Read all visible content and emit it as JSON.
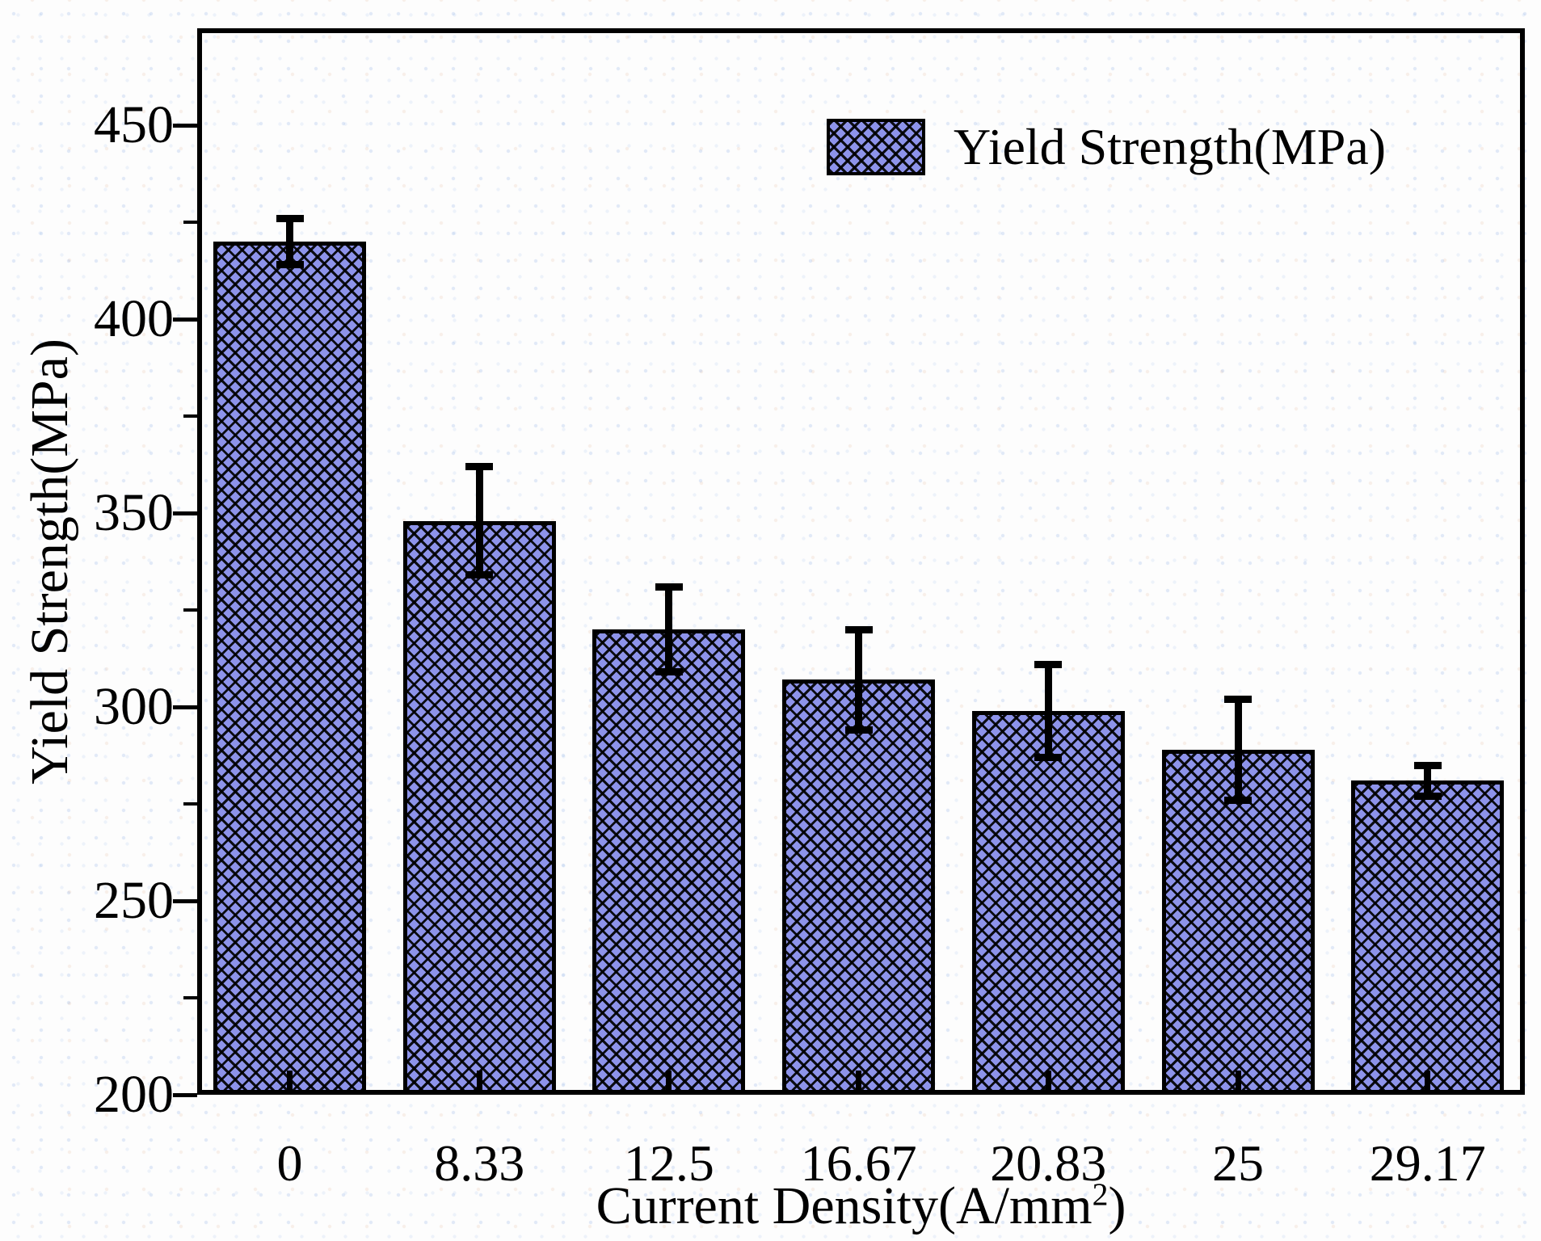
{
  "chart_data": {
    "type": "bar",
    "title": "",
    "categories": [
      "0",
      "8.33",
      "12.5",
      "16.67",
      "20.83",
      "25",
      "29.17"
    ],
    "series": [
      {
        "name": "Yield Strength(MPa)",
        "values": [
          420,
          348,
          320,
          307,
          299,
          289,
          281
        ],
        "errors": [
          6,
          14,
          11,
          13,
          12,
          13,
          4
        ]
      }
    ],
    "xlabel": "Current Density(A/mm²)",
    "xlabel_main": "Current Density(A/mm",
    "xlabel_sup": "2",
    "xlabel_end": ")",
    "ylabel": "Yield Strength(MPa)",
    "ylim": [
      200,
      475
    ],
    "yticks_major": [
      450,
      400,
      350,
      300,
      250,
      200
    ],
    "yticks_minor": [
      425,
      375,
      325,
      275,
      225
    ],
    "grid": false,
    "legend": [
      {
        "label": "Yield Strength(MPa)",
        "swatch": "crosshatch"
      }
    ],
    "legend_position": "top-right",
    "bar_fill": "#8d93ea",
    "bar_edge": "#000000",
    "error_color": "#000000",
    "hatch": "diagonal-crosshatch"
  }
}
